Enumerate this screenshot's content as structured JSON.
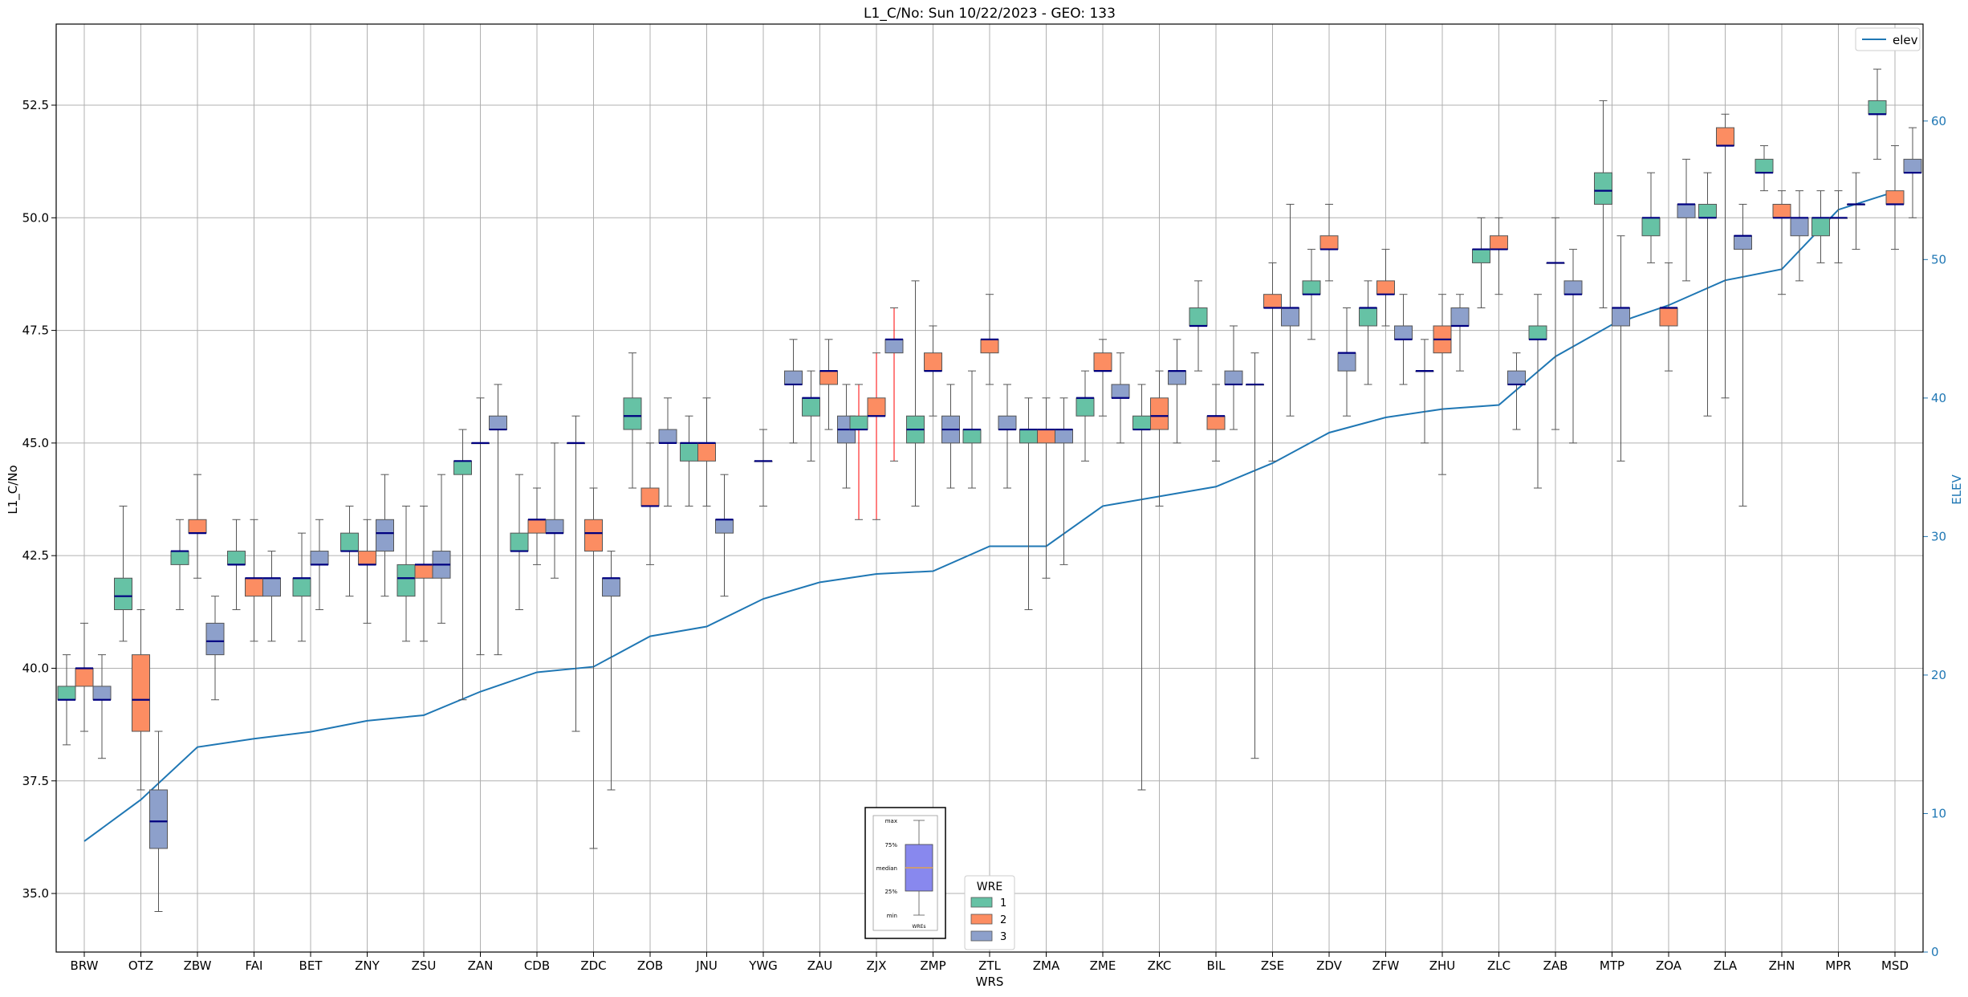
{
  "chart_data": {
    "type": "box",
    "title": "L1_C/No: Sun 10/22/2023 - GEO: 133",
    "xlabel": "WRS",
    "ylabel": "L1_C/No",
    "y2label": "ELEV",
    "ylim": [
      33.7,
      54.3
    ],
    "y2lim": [
      0,
      67
    ],
    "yticks": [
      "35.0",
      "37.5",
      "40.0",
      "42.5",
      "45.0",
      "47.5",
      "50.0",
      "52.5"
    ],
    "y2ticks": [
      "0",
      "10",
      "20",
      "30",
      "40",
      "50",
      "60"
    ],
    "grid": true,
    "colors": {
      "1": "#66c2a5",
      "2": "#fc8d62",
      "3": "#8da0cb",
      "median": "#000080",
      "elev": "#1f77b4",
      "red_whisker": "#ff0000",
      "axis2": "#1f77b4"
    },
    "categories": [
      "BRW",
      "OTZ",
      "ZBW",
      "FAI",
      "BET",
      "ZNY",
      "ZSU",
      "ZAN",
      "CDB",
      "ZDC",
      "ZOB",
      "JNU",
      "YWG",
      "ZAU",
      "ZJX",
      "ZMP",
      "ZTL",
      "ZMA",
      "ZME",
      "ZKC",
      "BIL",
      "ZSE",
      "ZDV",
      "ZFW",
      "ZHU",
      "ZLC",
      "ZAB",
      "MTP",
      "ZOA",
      "ZLA",
      "ZHN",
      "MPR",
      "MSD"
    ],
    "legend_wre": {
      "title": "WRE",
      "entries": [
        "1",
        "2",
        "3"
      ],
      "placement": "lower-center"
    },
    "legend_elev": {
      "label": "elev",
      "placement": "top-right"
    },
    "inset_key": {
      "labels": [
        "max",
        "75%",
        "median",
        "25%",
        "min"
      ],
      "xlabel": "WREs"
    },
    "elev": [
      8,
      11,
      14.8,
      15.4,
      15.9,
      16.7,
      17.1,
      18.8,
      20.2,
      20.6,
      22.8,
      23.5,
      25.5,
      26.7,
      27.3,
      27.5,
      29.3,
      29.3,
      32.2,
      32.9,
      33.6,
      35.3,
      37.5,
      38.6,
      39.2,
      39.5,
      43,
      45.3,
      46.7,
      48.5,
      49.3,
      53.6,
      54.9
    ],
    "boxes": [
      {
        "station": "BRW",
        "wre": 1,
        "min": 38.3,
        "q1": 39.3,
        "med": 39.3,
        "q3": 39.6,
        "max": 40.3
      },
      {
        "station": "BRW",
        "wre": 2,
        "min": 38.6,
        "q1": 39.6,
        "med": 40,
        "q3": 40,
        "max": 41
      },
      {
        "station": "BRW",
        "wre": 3,
        "min": 38,
        "q1": 39.3,
        "med": 39.3,
        "q3": 39.6,
        "max": 40.3
      },
      {
        "station": "OTZ",
        "wre": 1,
        "min": 40.6,
        "q1": 41.3,
        "med": 41.6,
        "q3": 42,
        "max": 43.6
      },
      {
        "station": "OTZ",
        "wre": 2,
        "min": 37.3,
        "q1": 38.6,
        "med": 39.3,
        "q3": 40.3,
        "max": 41.3
      },
      {
        "station": "OTZ",
        "wre": 3,
        "min": 34.6,
        "q1": 36,
        "med": 36.6,
        "q3": 37.3,
        "max": 38.6
      },
      {
        "station": "ZBW",
        "wre": 1,
        "min": 41.3,
        "q1": 42.3,
        "med": 42.6,
        "q3": 42.6,
        "max": 43.3
      },
      {
        "station": "ZBW",
        "wre": 2,
        "min": 42,
        "q1": 43,
        "med": 43,
        "q3": 43.3,
        "max": 44.3
      },
      {
        "station": "ZBW",
        "wre": 3,
        "min": 39.3,
        "q1": 40.3,
        "med": 40.6,
        "q3": 41,
        "max": 41.6
      },
      {
        "station": "FAI",
        "wre": 1,
        "min": 41.3,
        "q1": 42.3,
        "med": 42.3,
        "q3": 42.6,
        "max": 43.3
      },
      {
        "station": "FAI",
        "wre": 2,
        "min": 40.6,
        "q1": 41.6,
        "med": 42,
        "q3": 42,
        "max": 43.3
      },
      {
        "station": "FAI",
        "wre": 3,
        "min": 40.6,
        "q1": 41.6,
        "med": 42,
        "q3": 42,
        "max": 42.6
      },
      {
        "station": "BET",
        "wre": 1,
        "min": 40.6,
        "q1": 41.6,
        "med": 42,
        "q3": 42,
        "max": 43
      },
      {
        "station": "BET",
        "wre": 3,
        "min": 41.3,
        "q1": 42.3,
        "med": 42.3,
        "q3": 42.6,
        "max": 43.3
      },
      {
        "station": "ZNY",
        "wre": 1,
        "min": 41.6,
        "q1": 42.6,
        "med": 42.6,
        "q3": 43,
        "max": 43.6
      },
      {
        "station": "ZNY",
        "wre": 2,
        "min": 41,
        "q1": 42.3,
        "med": 42.3,
        "q3": 42.6,
        "max": 43.3
      },
      {
        "station": "ZNY",
        "wre": 3,
        "min": 41.6,
        "q1": 42.6,
        "med": 43,
        "q3": 43.3,
        "max": 44.3
      },
      {
        "station": "ZSU",
        "wre": 1,
        "min": 40.6,
        "q1": 41.6,
        "med": 42,
        "q3": 42.3,
        "max": 43.6
      },
      {
        "station": "ZSU",
        "wre": 2,
        "min": 40.6,
        "q1": 42,
        "med": 42.3,
        "q3": 42.3,
        "max": 43.6
      },
      {
        "station": "ZSU",
        "wre": 3,
        "min": 41,
        "q1": 42,
        "med": 42.3,
        "q3": 42.6,
        "max": 44.3
      },
      {
        "station": "ZAN",
        "wre": 1,
        "min": 39.3,
        "q1": 44.3,
        "med": 44.6,
        "q3": 44.6,
        "max": 45.3
      },
      {
        "station": "ZAN",
        "wre": 2,
        "min": 40.3,
        "q1": 45,
        "med": 45,
        "q3": 45,
        "max": 46
      },
      {
        "station": "ZAN",
        "wre": 3,
        "min": 40.3,
        "q1": 45.3,
        "med": 45.3,
        "q3": 45.6,
        "max": 46.3
      },
      {
        "station": "CDB",
        "wre": 1,
        "min": 41.3,
        "q1": 42.6,
        "med": 42.6,
        "q3": 43,
        "max": 44.3
      },
      {
        "station": "CDB",
        "wre": 2,
        "min": 42.3,
        "q1": 43,
        "med": 43.3,
        "q3": 43.3,
        "max": 44
      },
      {
        "station": "CDB",
        "wre": 3,
        "min": 42,
        "q1": 43,
        "med": 43,
        "q3": 43.3,
        "max": 45
      },
      {
        "station": "ZDC",
        "wre": 1,
        "min": 38.6,
        "q1": 45,
        "med": 45,
        "q3": 45,
        "max": 45.6
      },
      {
        "station": "ZDC",
        "wre": 2,
        "min": 36,
        "q1": 42.6,
        "med": 43,
        "q3": 43.3,
        "max": 44
      },
      {
        "station": "ZDC",
        "wre": 3,
        "min": 37.3,
        "q1": 41.6,
        "med": 42,
        "q3": 42,
        "max": 42.6
      },
      {
        "station": "ZOB",
        "wre": 1,
        "min": 44,
        "q1": 45.3,
        "med": 45.6,
        "q3": 46,
        "max": 47
      },
      {
        "station": "ZOB",
        "wre": 2,
        "min": 42.3,
        "q1": 43.6,
        "med": 43.6,
        "q3": 44,
        "max": 45
      },
      {
        "station": "ZOB",
        "wre": 3,
        "min": 43.6,
        "q1": 45,
        "med": 45,
        "q3": 45.3,
        "max": 46
      },
      {
        "station": "JNU",
        "wre": 1,
        "min": 43.6,
        "q1": 44.6,
        "med": 45,
        "q3": 45,
        "max": 45.6
      },
      {
        "station": "JNU",
        "wre": 2,
        "min": 43.6,
        "q1": 44.6,
        "med": 45,
        "q3": 45,
        "max": 46
      },
      {
        "station": "JNU",
        "wre": 3,
        "min": 41.6,
        "q1": 43,
        "med": 43.3,
        "q3": 43.3,
        "max": 44.3
      },
      {
        "station": "YWG",
        "wre": 3,
        "min": 43.6,
        "q1": 44.6,
        "med": 44.6,
        "q3": 44.6,
        "max": 45.3
      },
      {
        "station": "ZAU",
        "wre": 3,
        "min": 45,
        "q1": 46.3,
        "med": 46.3,
        "q3": 46.6,
        "max": 47.3
      },
      {
        "station": "ZAU",
        "wre": 1,
        "min": 44.6,
        "q1": 45.6,
        "med": 46,
        "q3": 46,
        "max": 46.6
      },
      {
        "station": "ZAU",
        "wre": 2,
        "min": 45.3,
        "q1": 46.3,
        "med": 46.6,
        "q3": 46.6,
        "max": 47.3
      },
      {
        "station": "ZAU",
        "wre": 3,
        "min": 44,
        "q1": 45,
        "med": 45.3,
        "q3": 45.6,
        "max": 46.3
      },
      {
        "station": "ZJX",
        "wre": 1,
        "min": 43.3,
        "q1": 45.3,
        "med": 45.3,
        "q3": 45.6,
        "max": 46.3,
        "red": true
      },
      {
        "station": "ZJX",
        "wre": 2,
        "min": 43.3,
        "q1": 45.6,
        "med": 45.6,
        "q3": 46,
        "max": 47,
        "red": true
      },
      {
        "station": "ZJX",
        "wre": 3,
        "min": 44.6,
        "q1": 47,
        "med": 47.3,
        "q3": 47.3,
        "max": 48,
        "red": true
      },
      {
        "station": "ZMP",
        "wre": 1,
        "min": 43.6,
        "q1": 45,
        "med": 45.3,
        "q3": 45.6,
        "max": 48.6
      },
      {
        "station": "ZMP",
        "wre": 2,
        "min": 45.6,
        "q1": 46.6,
        "med": 46.6,
        "q3": 47,
        "max": 47.6
      },
      {
        "station": "ZMP",
        "wre": 3,
        "min": 44,
        "q1": 45,
        "med": 45.3,
        "q3": 45.6,
        "max": 46.3
      },
      {
        "station": "ZTL",
        "wre": 1,
        "min": 44,
        "q1": 45,
        "med": 45.3,
        "q3": 45.3,
        "max": 46.6
      },
      {
        "station": "ZTL",
        "wre": 2,
        "min": 46.3,
        "q1": 47,
        "med": 47.3,
        "q3": 47.3,
        "max": 48.3
      },
      {
        "station": "ZTL",
        "wre": 3,
        "min": 44,
        "q1": 45.3,
        "med": 45.3,
        "q3": 45.6,
        "max": 46.3
      },
      {
        "station": "ZMA",
        "wre": 1,
        "min": 41.3,
        "q1": 45,
        "med": 45.3,
        "q3": 45.3,
        "max": 46
      },
      {
        "station": "ZMA",
        "wre": 2,
        "min": 42,
        "q1": 45,
        "med": 45.3,
        "q3": 45.3,
        "max": 46
      },
      {
        "station": "ZMA",
        "wre": 3,
        "min": 42.3,
        "q1": 45,
        "med": 45.3,
        "q3": 45.3,
        "max": 46
      },
      {
        "station": "ZME",
        "wre": 1,
        "min": 44.6,
        "q1": 45.6,
        "med": 46,
        "q3": 46,
        "max": 46.6
      },
      {
        "station": "ZME",
        "wre": 2,
        "min": 45.6,
        "q1": 46.6,
        "med": 46.6,
        "q3": 47,
        "max": 47.3
      },
      {
        "station": "ZME",
        "wre": 3,
        "min": 45,
        "q1": 46,
        "med": 46,
        "q3": 46.3,
        "max": 47
      },
      {
        "station": "ZKC",
        "wre": 1,
        "min": 37.3,
        "q1": 45.3,
        "med": 45.3,
        "q3": 45.6,
        "max": 46.3
      },
      {
        "station": "ZKC",
        "wre": 2,
        "min": 43.6,
        "q1": 45.3,
        "med": 45.6,
        "q3": 46,
        "max": 46.6
      },
      {
        "station": "ZKC",
        "wre": 3,
        "min": 45,
        "q1": 46.3,
        "med": 46.6,
        "q3": 46.6,
        "max": 47.3
      },
      {
        "station": "BIL",
        "wre": 1,
        "min": 46.6,
        "q1": 47.6,
        "med": 47.6,
        "q3": 48,
        "max": 48.6
      },
      {
        "station": "BIL",
        "wre": 2,
        "min": 44.6,
        "q1": 45.3,
        "med": 45.6,
        "q3": 45.6,
        "max": 46.3
      },
      {
        "station": "BIL",
        "wre": 3,
        "min": 45.3,
        "q1": 46.3,
        "med": 46.3,
        "q3": 46.6,
        "max": 47.6
      },
      {
        "station": "ZSE",
        "wre": 3,
        "min": 38,
        "q1": 46.3,
        "med": 46.3,
        "q3": 46.3,
        "max": 47
      },
      {
        "station": "ZSE",
        "wre": 2,
        "min": 44.6,
        "q1": 48,
        "med": 48,
        "q3": 48.3,
        "max": 49
      },
      {
        "station": "ZSE",
        "wre": 3,
        "min": 45.6,
        "q1": 47.6,
        "med": 48,
        "q3": 48,
        "max": 50.3
      },
      {
        "station": "ZDV",
        "wre": 1,
        "min": 47.3,
        "q1": 48.3,
        "med": 48.3,
        "q3": 48.6,
        "max": 49.3
      },
      {
        "station": "ZDV",
        "wre": 2,
        "min": 48.6,
        "q1": 49.3,
        "med": 49.3,
        "q3": 49.6,
        "max": 50.3
      },
      {
        "station": "ZDV",
        "wre": 3,
        "min": 45.6,
        "q1": 46.6,
        "med": 47,
        "q3": 47,
        "max": 48
      },
      {
        "station": "ZFW",
        "wre": 1,
        "min": 46.3,
        "q1": 47.6,
        "med": 48,
        "q3": 48,
        "max": 48.6
      },
      {
        "station": "ZFW",
        "wre": 2,
        "min": 47.6,
        "q1": 48.3,
        "med": 48.3,
        "q3": 48.6,
        "max": 49.3
      },
      {
        "station": "ZFW",
        "wre": 3,
        "min": 46.3,
        "q1": 47.3,
        "med": 47.3,
        "q3": 47.6,
        "max": 48.3
      },
      {
        "station": "ZHU",
        "wre": 1,
        "min": 45,
        "q1": 46.6,
        "med": 46.6,
        "q3": 46.6,
        "max": 47.3
      },
      {
        "station": "ZHU",
        "wre": 2,
        "min": 44.3,
        "q1": 47,
        "med": 47.3,
        "q3": 47.6,
        "max": 48.3
      },
      {
        "station": "ZHU",
        "wre": 3,
        "min": 46.6,
        "q1": 47.6,
        "med": 47.6,
        "q3": 48,
        "max": 48.3
      },
      {
        "station": "ZLC",
        "wre": 1,
        "min": 48,
        "q1": 49,
        "med": 49.3,
        "q3": 49.3,
        "max": 50
      },
      {
        "station": "ZLC",
        "wre": 2,
        "min": 48.3,
        "q1": 49.3,
        "med": 49.3,
        "q3": 49.6,
        "max": 50
      },
      {
        "station": "ZLC",
        "wre": 3,
        "min": 45.3,
        "q1": 46.3,
        "med": 46.3,
        "q3": 46.6,
        "max": 47
      },
      {
        "station": "ZAB",
        "wre": 1,
        "min": 44,
        "q1": 47.3,
        "med": 47.3,
        "q3": 47.6,
        "max": 48.3
      },
      {
        "station": "ZAB",
        "wre": 2,
        "min": 45.3,
        "q1": 49,
        "med": 49,
        "q3": 49,
        "max": 50
      },
      {
        "station": "ZAB",
        "wre": 3,
        "min": 45,
        "q1": 48.3,
        "med": 48.3,
        "q3": 48.6,
        "max": 49.3
      },
      {
        "station": "MTP",
        "wre": 1,
        "min": 48,
        "q1": 50.3,
        "med": 50.6,
        "q3": 51,
        "max": 52.6
      },
      {
        "station": "MTP",
        "wre": 3,
        "min": 44.6,
        "q1": 47.6,
        "med": 48,
        "q3": 48,
        "max": 49.6
      },
      {
        "station": "ZOA",
        "wre": 1,
        "min": 49,
        "q1": 49.6,
        "med": 50,
        "q3": 50,
        "max": 51
      },
      {
        "station": "ZOA",
        "wre": 2,
        "min": 46.6,
        "q1": 47.6,
        "med": 48,
        "q3": 48,
        "max": 49
      },
      {
        "station": "ZOA",
        "wre": 3,
        "min": 48.6,
        "q1": 50,
        "med": 50.3,
        "q3": 50.3,
        "max": 51.3
      },
      {
        "station": "ZLA",
        "wre": 1,
        "min": 45.6,
        "q1": 50,
        "med": 50,
        "q3": 50.3,
        "max": 51
      },
      {
        "station": "ZLA",
        "wre": 2,
        "min": 46,
        "q1": 51.6,
        "med": 51.6,
        "q3": 52,
        "max": 52.3
      },
      {
        "station": "ZLA",
        "wre": 3,
        "min": 43.6,
        "q1": 49.3,
        "med": 49.6,
        "q3": 49.6,
        "max": 50.3
      },
      {
        "station": "ZHN",
        "wre": 1,
        "min": 50.6,
        "q1": 51,
        "med": 51,
        "q3": 51.3,
        "max": 51.6
      },
      {
        "station": "ZHN",
        "wre": 2,
        "min": 48.3,
        "q1": 50,
        "med": 50,
        "q3": 50.3,
        "max": 50.6
      },
      {
        "station": "ZHN",
        "wre": 3,
        "min": 48.6,
        "q1": 49.6,
        "med": 50,
        "q3": 50,
        "max": 50.6
      },
      {
        "station": "MPR",
        "wre": 1,
        "min": 49,
        "q1": 49.6,
        "med": 50,
        "q3": 50,
        "max": 50.6
      },
      {
        "station": "MPR",
        "wre": 2,
        "min": 49,
        "q1": 50,
        "med": 50,
        "q3": 50,
        "max": 50.6
      },
      {
        "station": "MPR",
        "wre": 3,
        "min": 49.3,
        "q1": 50.3,
        "med": 50.3,
        "q3": 50.3,
        "max": 51
      },
      {
        "station": "MSD",
        "wre": 1,
        "min": 51.3,
        "q1": 52.3,
        "med": 52.3,
        "q3": 52.6,
        "max": 53.3
      },
      {
        "station": "MSD",
        "wre": 2,
        "min": 49.3,
        "q1": 50.3,
        "med": 50.3,
        "q3": 50.6,
        "max": 51.6
      },
      {
        "station": "MSD",
        "wre": 3,
        "min": 50,
        "q1": 51,
        "med": 51,
        "q3": 51.3,
        "max": 52
      }
    ]
  }
}
